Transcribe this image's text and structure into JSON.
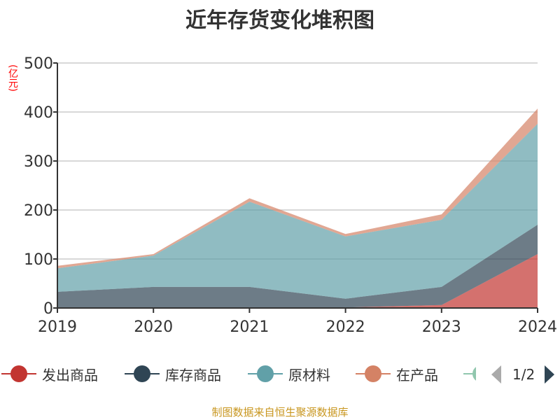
{
  "chart_data": {
    "type": "area",
    "stacked": true,
    "title": "近年存货变化堆积图",
    "ylabel": "(亿元)",
    "xlabel": "",
    "categories": [
      "2019",
      "2020",
      "2021",
      "2022",
      "2023",
      "2024"
    ],
    "ylim": [
      0,
      500
    ],
    "yticks": [
      "0",
      "100",
      "200",
      "300",
      "400",
      "500"
    ],
    "grid": true,
    "legend_position": "bottom",
    "series": [
      {
        "name": "发出商品",
        "color": "#c23531",
        "values": [
          0,
          0,
          1,
          1,
          6,
          110
        ]
      },
      {
        "name": "库存商品",
        "color": "#2f4554",
        "values": [
          33,
          43,
          42,
          18,
          37,
          60
        ]
      },
      {
        "name": "原材料",
        "color": "#61a0a8",
        "values": [
          48,
          64,
          174,
          127,
          137,
          206
        ]
      },
      {
        "name": "在产品",
        "color": "#d48265",
        "values": [
          5,
          3,
          7,
          5,
          11,
          31
        ]
      }
    ]
  },
  "legend": {
    "hidden_item_color": "#91c7ae",
    "page": "1/2"
  },
  "source": "制图数据来自恒生聚源数据库"
}
